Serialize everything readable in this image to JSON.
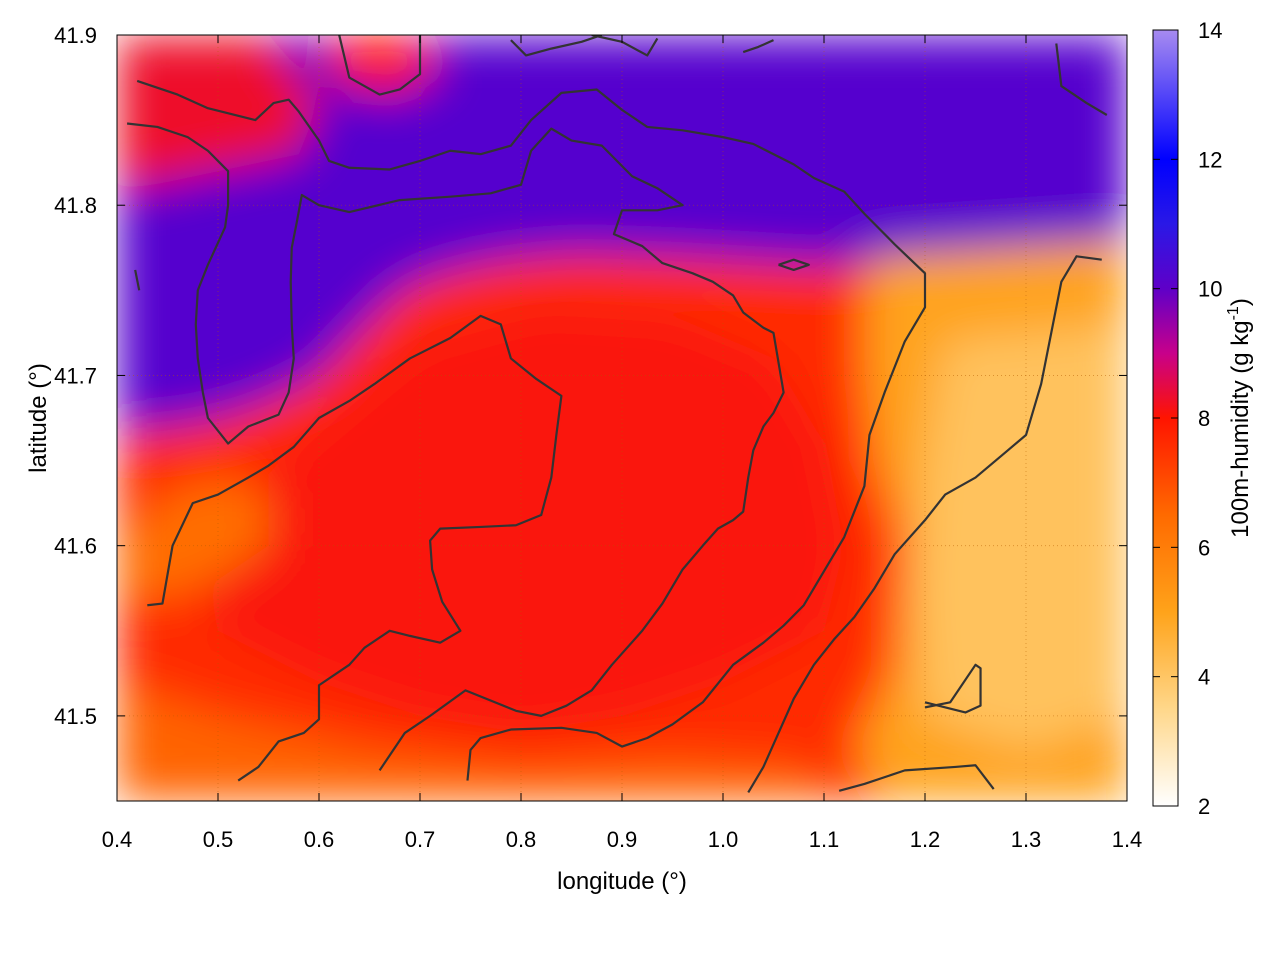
{
  "chart_data": {
    "type": "heatmap",
    "title": "",
    "xlabel": "longitude (°)",
    "ylabel": "latitude (°)",
    "colorbar_label_text": "100m-humidity (g kg",
    "colorbar_label_sup": "-1",
    "colorbar_label_close": ")",
    "xlim": [
      0.4,
      1.4
    ],
    "ylim": [
      41.45,
      41.9
    ],
    "clim": [
      2,
      14
    ],
    "x_ticks": [
      0.4,
      0.5,
      0.6,
      0.7,
      0.8,
      0.9,
      1.0,
      1.1,
      1.2,
      1.3,
      1.4
    ],
    "x_tick_labels": [
      "0.4",
      "0.5",
      "0.6",
      "0.7",
      "0.8",
      "0.9",
      "1.0",
      "1.1",
      "1.2",
      "1.3",
      "1.4"
    ],
    "y_ticks": [
      41.5,
      41.6,
      41.7,
      41.8,
      41.9
    ],
    "y_tick_labels": [
      "41.5",
      "41.6",
      "41.7",
      "41.8",
      "41.9"
    ],
    "colorbar_ticks": [
      2,
      4,
      6,
      8,
      10,
      12,
      14
    ],
    "colorbar_tick_labels": [
      "2",
      "4",
      "6",
      "8",
      "10",
      "12",
      "14"
    ],
    "colormap": [
      {
        "value": 2,
        "color": "#ffffff"
      },
      {
        "value": 3.5,
        "color": "#ffd78a"
      },
      {
        "value": 5,
        "color": "#ffa31a"
      },
      {
        "value": 6.5,
        "color": "#ff6a00"
      },
      {
        "value": 8,
        "color": "#ff1400"
      },
      {
        "value": 9,
        "color": "#c8008a"
      },
      {
        "value": 10,
        "color": "#5f00c8"
      },
      {
        "value": 11,
        "color": "#2a18e6"
      },
      {
        "value": 12,
        "color": "#0000ff"
      },
      {
        "value": 14,
        "color": "#a78bf0"
      }
    ],
    "grid": true,
    "regions": [
      {
        "name": "background",
        "value": 7.6,
        "polygon": [
          [
            0.4,
            41.45
          ],
          [
            1.4,
            41.45
          ],
          [
            1.4,
            41.9
          ],
          [
            0.4,
            41.9
          ]
        ]
      },
      {
        "name": "north moist band",
        "value": 10.2,
        "polygon": [
          [
            0.4,
            41.9
          ],
          [
            1.4,
            41.9
          ],
          [
            1.4,
            41.78
          ],
          [
            1.25,
            41.77
          ],
          [
            1.1,
            41.765
          ],
          [
            0.95,
            41.77
          ],
          [
            0.85,
            41.772
          ],
          [
            0.78,
            41.768
          ],
          [
            0.72,
            41.76
          ],
          [
            0.68,
            41.75
          ],
          [
            0.63,
            41.72
          ],
          [
            0.6,
            41.7
          ],
          [
            0.55,
            41.685
          ],
          [
            0.5,
            41.675
          ],
          [
            0.45,
            41.67
          ],
          [
            0.4,
            41.668
          ]
        ]
      },
      {
        "name": "northwest red patch",
        "value": 8.3,
        "polygon": [
          [
            0.4,
            41.9
          ],
          [
            0.55,
            41.9
          ],
          [
            0.6,
            41.86
          ],
          [
            0.58,
            41.83
          ],
          [
            0.5,
            41.82
          ],
          [
            0.42,
            41.81
          ],
          [
            0.4,
            41.81
          ]
        ]
      },
      {
        "name": "north central red patch",
        "value": 8.0,
        "polygon": [
          [
            0.6,
            41.9
          ],
          [
            0.7,
            41.9
          ],
          [
            0.72,
            41.88
          ],
          [
            0.68,
            41.865
          ],
          [
            0.62,
            41.87
          ]
        ]
      },
      {
        "name": "central red core",
        "value": 8.1,
        "polygon": [
          [
            0.48,
            41.6
          ],
          [
            0.58,
            41.66
          ],
          [
            0.7,
            41.72
          ],
          [
            0.82,
            41.74
          ],
          [
            0.95,
            41.735
          ],
          [
            1.05,
            41.71
          ],
          [
            1.1,
            41.66
          ],
          [
            1.12,
            41.6
          ],
          [
            1.1,
            41.55
          ],
          [
            1.0,
            41.52
          ],
          [
            0.9,
            41.5
          ],
          [
            0.8,
            41.49
          ],
          [
            0.7,
            41.5
          ],
          [
            0.6,
            41.52
          ],
          [
            0.5,
            41.55
          ]
        ]
      },
      {
        "name": "east dry zone",
        "value": 5.0,
        "polygon": [
          [
            1.15,
            41.77
          ],
          [
            1.4,
            41.78
          ],
          [
            1.4,
            41.45
          ],
          [
            1.16,
            41.45
          ],
          [
            1.13,
            41.48
          ],
          [
            1.17,
            41.53
          ],
          [
            1.18,
            41.6
          ],
          [
            1.15,
            41.65
          ],
          [
            1.14,
            41.7
          ],
          [
            1.14,
            41.75
          ]
        ]
      },
      {
        "name": "east driest zone",
        "value": 4.1,
        "polygon": [
          [
            1.22,
            41.72
          ],
          [
            1.4,
            41.73
          ],
          [
            1.4,
            41.5
          ],
          [
            1.3,
            41.48
          ],
          [
            1.2,
            41.5
          ],
          [
            1.19,
            41.58
          ],
          [
            1.2,
            41.65
          ]
        ]
      },
      {
        "name": "southwest orange band",
        "value": 6.4,
        "polygon": [
          [
            0.4,
            41.6
          ],
          [
            0.45,
            41.63
          ],
          [
            0.5,
            41.64
          ],
          [
            0.55,
            41.63
          ],
          [
            0.55,
            41.6
          ],
          [
            0.5,
            41.58
          ],
          [
            0.45,
            41.57
          ],
          [
            0.4,
            41.57
          ]
        ]
      },
      {
        "name": "south orange band",
        "value": 6.6,
        "polygon": [
          [
            0.4,
            41.45
          ],
          [
            1.12,
            41.45
          ],
          [
            1.08,
            41.47
          ],
          [
            0.95,
            41.475
          ],
          [
            0.8,
            41.47
          ],
          [
            0.65,
            41.48
          ],
          [
            0.5,
            41.5
          ],
          [
            0.4,
            41.52
          ]
        ]
      }
    ],
    "contours": [
      [
        [
          0.42,
          41.873
        ],
        [
          0.46,
          41.865
        ],
        [
          0.49,
          41.857
        ],
        [
          0.537,
          41.85
        ],
        [
          0.555,
          41.86
        ],
        [
          0.57,
          41.862
        ],
        [
          0.58,
          41.855
        ],
        [
          0.6,
          41.838
        ],
        [
          0.61,
          41.826
        ],
        [
          0.63,
          41.822
        ],
        [
          0.67,
          41.821
        ],
        [
          0.7,
          41.826
        ],
        [
          0.73,
          41.832
        ],
        [
          0.76,
          41.83
        ],
        [
          0.79,
          41.835
        ],
        [
          0.81,
          41.85
        ],
        [
          0.84,
          41.866
        ],
        [
          0.875,
          41.868
        ],
        [
          0.9,
          41.856
        ],
        [
          0.925,
          41.846
        ],
        [
          0.96,
          41.844
        ],
        [
          1.0,
          41.84
        ],
        [
          1.03,
          41.836
        ],
        [
          1.07,
          41.824
        ],
        [
          1.09,
          41.816
        ],
        [
          1.12,
          41.808
        ],
        [
          1.14,
          41.795
        ],
        [
          1.17,
          41.777
        ],
        [
          1.2,
          41.76
        ],
        [
          1.2,
          41.74
        ],
        [
          1.18,
          41.72
        ],
        [
          1.16,
          41.69
        ],
        [
          1.145,
          41.665
        ],
        [
          1.14,
          41.635
        ],
        [
          1.12,
          41.605
        ],
        [
          1.1,
          41.585
        ],
        [
          1.08,
          41.565
        ],
        [
          1.06,
          41.553
        ],
        [
          1.04,
          41.543
        ],
        [
          1.01,
          41.53
        ],
        [
          0.98,
          41.508
        ],
        [
          0.95,
          41.495
        ],
        [
          0.925,
          41.487
        ],
        [
          0.9,
          41.482
        ],
        [
          0.875,
          41.49
        ],
        [
          0.84,
          41.493
        ],
        [
          0.79,
          41.492
        ],
        [
          0.76,
          41.487
        ],
        [
          0.75,
          41.48
        ],
        [
          0.747,
          41.462
        ]
      ],
      [
        [
          0.41,
          41.848
        ],
        [
          0.44,
          41.846
        ],
        [
          0.47,
          41.84
        ],
        [
          0.49,
          41.832
        ],
        [
          0.51,
          41.82
        ],
        [
          0.51,
          41.8
        ],
        [
          0.507,
          41.787
        ],
        [
          0.49,
          41.765
        ],
        [
          0.48,
          41.75
        ],
        [
          0.478,
          41.73
        ],
        [
          0.48,
          41.71
        ],
        [
          0.485,
          41.69
        ],
        [
          0.49,
          41.675
        ],
        [
          0.51,
          41.66
        ],
        [
          0.53,
          41.67
        ],
        [
          0.56,
          41.677
        ],
        [
          0.57,
          41.69
        ],
        [
          0.575,
          41.71
        ],
        [
          0.573,
          41.73
        ],
        [
          0.572,
          41.755
        ],
        [
          0.573,
          41.775
        ],
        [
          0.578,
          41.79
        ],
        [
          0.583,
          41.806
        ],
        [
          0.6,
          41.8
        ],
        [
          0.63,
          41.796
        ],
        [
          0.68,
          41.803
        ],
        [
          0.73,
          41.805
        ],
        [
          0.77,
          41.807
        ],
        [
          0.8,
          41.812
        ],
        [
          0.81,
          41.832
        ],
        [
          0.83,
          41.845
        ],
        [
          0.85,
          41.838
        ],
        [
          0.88,
          41.835
        ],
        [
          0.91,
          41.817
        ],
        [
          0.935,
          41.81
        ],
        [
          0.96,
          41.8
        ],
        [
          0.935,
          41.797
        ],
        [
          0.9,
          41.797
        ],
        [
          0.892,
          41.783
        ],
        [
          0.92,
          41.776
        ],
        [
          0.94,
          41.766
        ],
        [
          0.97,
          41.76
        ],
        [
          0.99,
          41.755
        ],
        [
          1.01,
          41.747
        ],
        [
          1.02,
          41.737
        ],
        [
          1.04,
          41.728
        ],
        [
          1.05,
          41.725
        ],
        [
          1.06,
          41.69
        ],
        [
          1.05,
          41.678
        ],
        [
          1.04,
          41.67
        ],
        [
          1.03,
          41.656
        ],
        [
          1.025,
          41.64
        ],
        [
          1.02,
          41.62
        ],
        [
          1.01,
          41.615
        ],
        [
          0.995,
          41.61
        ],
        [
          0.98,
          41.6
        ],
        [
          0.96,
          41.586
        ],
        [
          0.94,
          41.566
        ],
        [
          0.92,
          41.55
        ],
        [
          0.89,
          41.53
        ],
        [
          0.87,
          41.515
        ],
        [
          0.845,
          41.506
        ],
        [
          0.82,
          41.5
        ],
        [
          0.795,
          41.503
        ],
        [
          0.745,
          41.515
        ],
        [
          0.71,
          41.5
        ],
        [
          0.685,
          41.49
        ],
        [
          0.66,
          41.468
        ]
      ],
      [
        [
          0.43,
          41.565
        ],
        [
          0.445,
          41.566
        ],
        [
          0.455,
          41.6
        ],
        [
          0.475,
          41.625
        ],
        [
          0.5,
          41.63
        ],
        [
          0.53,
          41.64
        ],
        [
          0.55,
          41.647
        ],
        [
          0.575,
          41.658
        ],
        [
          0.6,
          41.675
        ],
        [
          0.63,
          41.685
        ],
        [
          0.655,
          41.695
        ],
        [
          0.69,
          41.71
        ],
        [
          0.73,
          41.722
        ],
        [
          0.76,
          41.735
        ],
        [
          0.78,
          41.73
        ],
        [
          0.79,
          41.71
        ],
        [
          0.815,
          41.698
        ],
        [
          0.84,
          41.688
        ],
        [
          0.835,
          41.665
        ],
        [
          0.83,
          41.64
        ],
        [
          0.82,
          41.618
        ],
        [
          0.795,
          41.612
        ],
        [
          0.76,
          41.611
        ],
        [
          0.72,
          41.61
        ],
        [
          0.71,
          41.603
        ],
        [
          0.712,
          41.586
        ],
        [
          0.722,
          41.567
        ],
        [
          0.74,
          41.55
        ],
        [
          0.72,
          41.543
        ],
        [
          0.69,
          41.547
        ],
        [
          0.67,
          41.55
        ],
        [
          0.645,
          41.54
        ],
        [
          0.63,
          41.53
        ],
        [
          0.6,
          41.518
        ],
        [
          0.6,
          41.498
        ],
        [
          0.585,
          41.49
        ],
        [
          0.56,
          41.485
        ],
        [
          0.54,
          41.47
        ],
        [
          0.52,
          41.462
        ]
      ],
      [
        [
          1.025,
          41.455
        ],
        [
          1.04,
          41.47
        ],
        [
          1.055,
          41.49
        ],
        [
          1.07,
          41.51
        ],
        [
          1.09,
          41.53
        ],
        [
          1.11,
          41.545
        ],
        [
          1.13,
          41.558
        ],
        [
          1.15,
          41.575
        ],
        [
          1.17,
          41.595
        ],
        [
          1.2,
          41.615
        ],
        [
          1.22,
          41.63
        ],
        [
          1.25,
          41.64
        ],
        [
          1.28,
          41.655
        ],
        [
          1.3,
          41.665
        ],
        [
          1.315,
          41.695
        ],
        [
          1.325,
          41.725
        ],
        [
          1.335,
          41.755
        ],
        [
          1.35,
          41.77
        ],
        [
          1.375,
          41.768
        ]
      ],
      [
        [
          1.115,
          41.456
        ],
        [
          1.14,
          41.46
        ],
        [
          1.18,
          41.468
        ],
        [
          1.23,
          41.47
        ],
        [
          1.25,
          41.471
        ],
        [
          1.268,
          41.457
        ]
      ],
      [
        [
          1.2,
          41.505
        ],
        [
          1.225,
          41.508
        ],
        [
          1.25,
          41.53
        ],
        [
          1.255,
          41.528
        ],
        [
          1.255,
          41.506
        ],
        [
          1.24,
          41.502
        ],
        [
          1.2,
          41.508
        ]
      ],
      [
        [
          1.055,
          41.765
        ],
        [
          1.07,
          41.768
        ],
        [
          1.085,
          41.765
        ],
        [
          1.07,
          41.762
        ],
        [
          1.055,
          41.765
        ]
      ],
      [
        [
          0.62,
          41.9
        ],
        [
          0.63,
          41.875
        ],
        [
          0.66,
          41.865
        ],
        [
          0.68,
          41.868
        ],
        [
          0.7,
          41.877
        ],
        [
          0.7,
          41.9
        ]
      ],
      [
        [
          0.79,
          41.897
        ],
        [
          0.805,
          41.888
        ],
        [
          0.83,
          41.892
        ],
        [
          0.86,
          41.896
        ],
        [
          0.88,
          41.9
        ]
      ],
      [
        [
          0.87,
          41.9
        ],
        [
          0.9,
          41.896
        ],
        [
          0.925,
          41.888
        ],
        [
          0.935,
          41.898
        ]
      ],
      [
        [
          1.02,
          41.89
        ],
        [
          1.035,
          41.893
        ],
        [
          1.05,
          41.897
        ]
      ],
      [
        [
          1.33,
          41.895
        ],
        [
          1.335,
          41.87
        ],
        [
          1.36,
          41.86
        ],
        [
          1.38,
          41.853
        ]
      ],
      [
        [
          0.418,
          41.762
        ],
        [
          0.422,
          41.75
        ]
      ]
    ]
  }
}
